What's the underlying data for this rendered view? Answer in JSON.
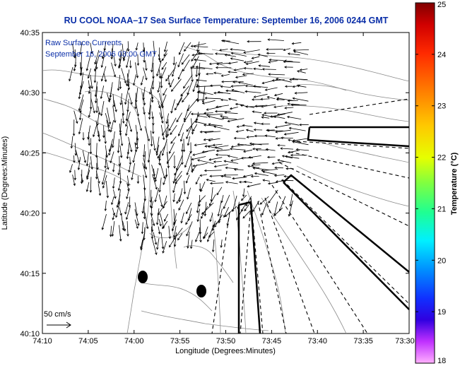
{
  "title": "RU COOL  NOAA–17  Sea Surface Temperature:  September 16, 2006 0244 GMT",
  "subtitle_line1": "Raw Surface Currents",
  "subtitle_line2": "September 16, 2006 03:00 GMT",
  "scale_label": "50 cm/s",
  "x_axis": {
    "title": "Longitude (Degrees:Minutes)",
    "ticks": [
      "74:10",
      "74:05",
      "74:00",
      "73:55",
      "73:50",
      "73:45",
      "73:40",
      "73:35",
      "73:30"
    ]
  },
  "y_axis": {
    "title": "Latitude (Degrees:Minutes)",
    "ticks": [
      "40:35",
      "40:30",
      "40:25",
      "40:20",
      "40:15",
      "40:10"
    ]
  },
  "colorbar": {
    "title": "Temperature (°C)",
    "min": 18,
    "max": 25,
    "ticks": [
      "25",
      "24",
      "23",
      "22",
      "21",
      "20",
      "19",
      "18"
    ]
  },
  "colors": {
    "title": "#0b2fa8",
    "vectors": "#000000",
    "land_outline": "#808080"
  }
}
